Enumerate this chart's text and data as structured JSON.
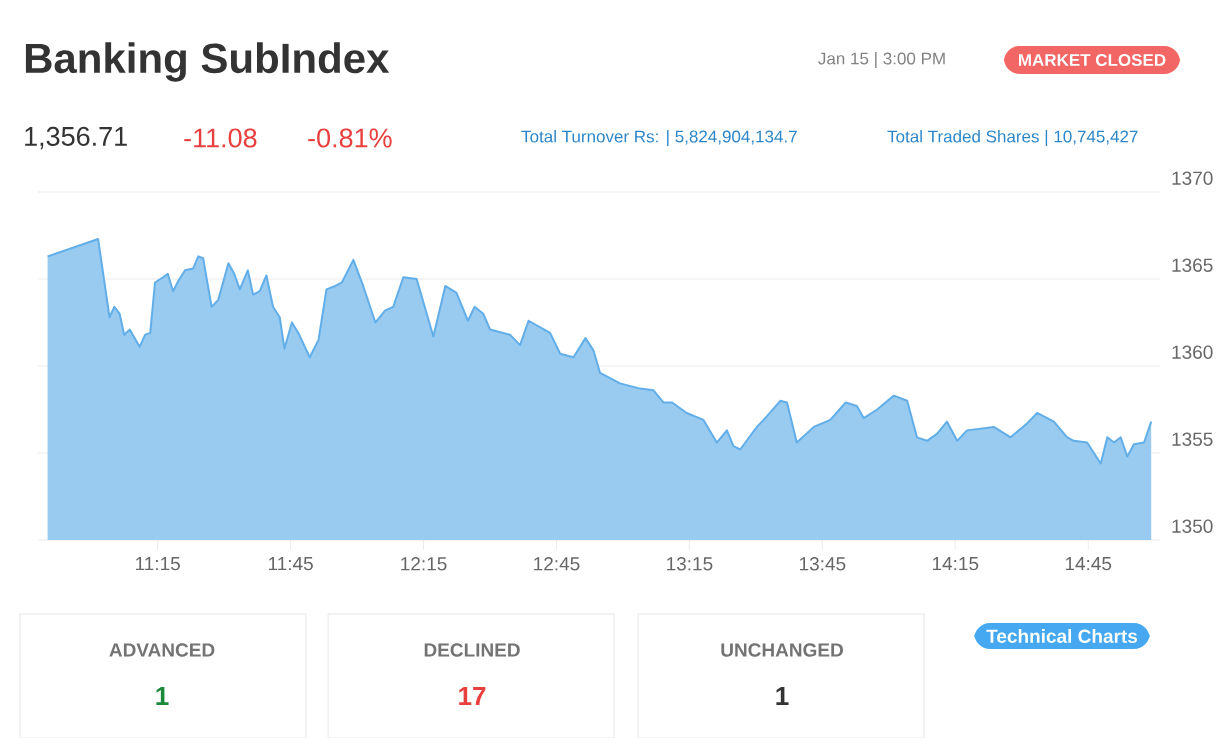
{
  "chart_data": {
    "type": "area",
    "title": "Banking SubIndex",
    "subtitle": "1,356.71",
    "annotations": [
      "Jan 15 | 3:00 PM",
      "MARKET CLOSED",
      "Total Turnover Rs: | 5,824,904,134.7",
      "Total Traded Shares | 10,745,427",
      "ADVANCED",
      "1",
      "DECLINED",
      "17",
      "UNCHANGED",
      "1",
      "Technical Charts",
      "-11.08",
      "-0.81%"
    ],
    "x": [
      10.836,
      11.026,
      11.069,
      11.087,
      11.107,
      11.124,
      11.145,
      11.182,
      11.203,
      11.222,
      11.24,
      11.27,
      11.288,
      11.308,
      11.328,
      11.353,
      11.383,
      11.403,
      11.421,
      11.453,
      11.478,
      11.516,
      11.538,
      11.559,
      11.589,
      11.609,
      11.634,
      11.659,
      11.684,
      11.709,
      11.727,
      11.755,
      11.779,
      11.822,
      11.855,
      11.885,
      11.918,
      11.943,
      11.986,
      12.023,
      12.069,
      12.106,
      12.136,
      12.174,
      12.224,
      12.287,
      12.332,
      12.374,
      12.417,
      12.442,
      12.475,
      12.5,
      12.575,
      12.613,
      12.645,
      12.726,
      12.764,
      12.814,
      12.859,
      12.889,
      12.914,
      12.989,
      13.065,
      13.115,
      13.153,
      13.185,
      13.24,
      13.303,
      13.353,
      13.391,
      13.416,
      13.441,
      13.504,
      13.541,
      13.592,
      13.617,
      13.654,
      13.718,
      13.78,
      13.838,
      13.88,
      13.906,
      13.956,
      14.019,
      14.069,
      14.106,
      14.144,
      14.181,
      14.219,
      14.257,
      14.294,
      14.395,
      14.458,
      14.52,
      14.558,
      14.621,
      14.671,
      14.696,
      14.746,
      14.797,
      14.822,
      14.847,
      14.872,
      14.897,
      14.922,
      14.96,
      14.987
    ],
    "series": [
      {
        "color": "#62aee8",
        "values": [
          1366.3,
          1367.3,
          1362.8,
          1363.4,
          1363.0,
          1361.8,
          1362.1,
          1361.1,
          1361.8,
          1361.9,
          1364.8,
          1365.1,
          1365.3,
          1364.3,
          1364.9,
          1365.5,
          1365.6,
          1366.3,
          1366.2,
          1363.4,
          1363.8,
          1365.9,
          1365.3,
          1364.4,
          1365.5,
          1364.1,
          1364.3,
          1365.2,
          1363.4,
          1362.8,
          1361.0,
          1362.5,
          1361.9,
          1360.5,
          1361.5,
          1364.4,
          1364.6,
          1364.8,
          1366.1,
          1364.6,
          1362.5,
          1363.2,
          1363.4,
          1365.1,
          1365.0,
          1361.7,
          1364.6,
          1364.2,
          1362.6,
          1363.4,
          1363.0,
          1362.1,
          1361.8,
          1361.2,
          1362.6,
          1361.9,
          1360.7,
          1360.5,
          1361.6,
          1360.9,
          1359.6,
          1359.0,
          1358.7,
          1358.6,
          1357.9,
          1357.9,
          1357.3,
          1356.9,
          1355.6,
          1356.3,
          1355.4,
          1355.2,
          1356.5,
          1357.1,
          1358.0,
          1357.9,
          1355.6,
          1356.5,
          1356.9,
          1357.9,
          1357.7,
          1357.0,
          1357.5,
          1358.3,
          1358.0,
          1355.9,
          1355.7,
          1356.1,
          1356.8,
          1355.7,
          1356.3,
          1356.5,
          1355.9,
          1356.7,
          1357.3,
          1356.8,
          1355.9,
          1355.7,
          1355.6,
          1354.4,
          1355.9,
          1355.6,
          1355.9,
          1354.8,
          1355.5,
          1355.6,
          1356.8
        ]
      }
    ],
    "xlim": [
      10.8,
      15.02
    ],
    "xticks": [
      {
        "value": 11.25,
        "label": "11:15"
      },
      {
        "value": 11.75,
        "label": "11:45"
      },
      {
        "value": 12.25,
        "label": "12:15"
      },
      {
        "value": 12.75,
        "label": "12:45"
      },
      {
        "value": 13.25,
        "label": "13:15"
      },
      {
        "value": 13.75,
        "label": "13:45"
      },
      {
        "value": 14.25,
        "label": "14:15"
      },
      {
        "value": 14.75,
        "label": "14:45"
      }
    ],
    "ylim": [
      1350,
      1370
    ],
    "yticks": [
      1350,
      1355,
      1360,
      1365,
      1370
    ],
    "grid": "y"
  }
}
